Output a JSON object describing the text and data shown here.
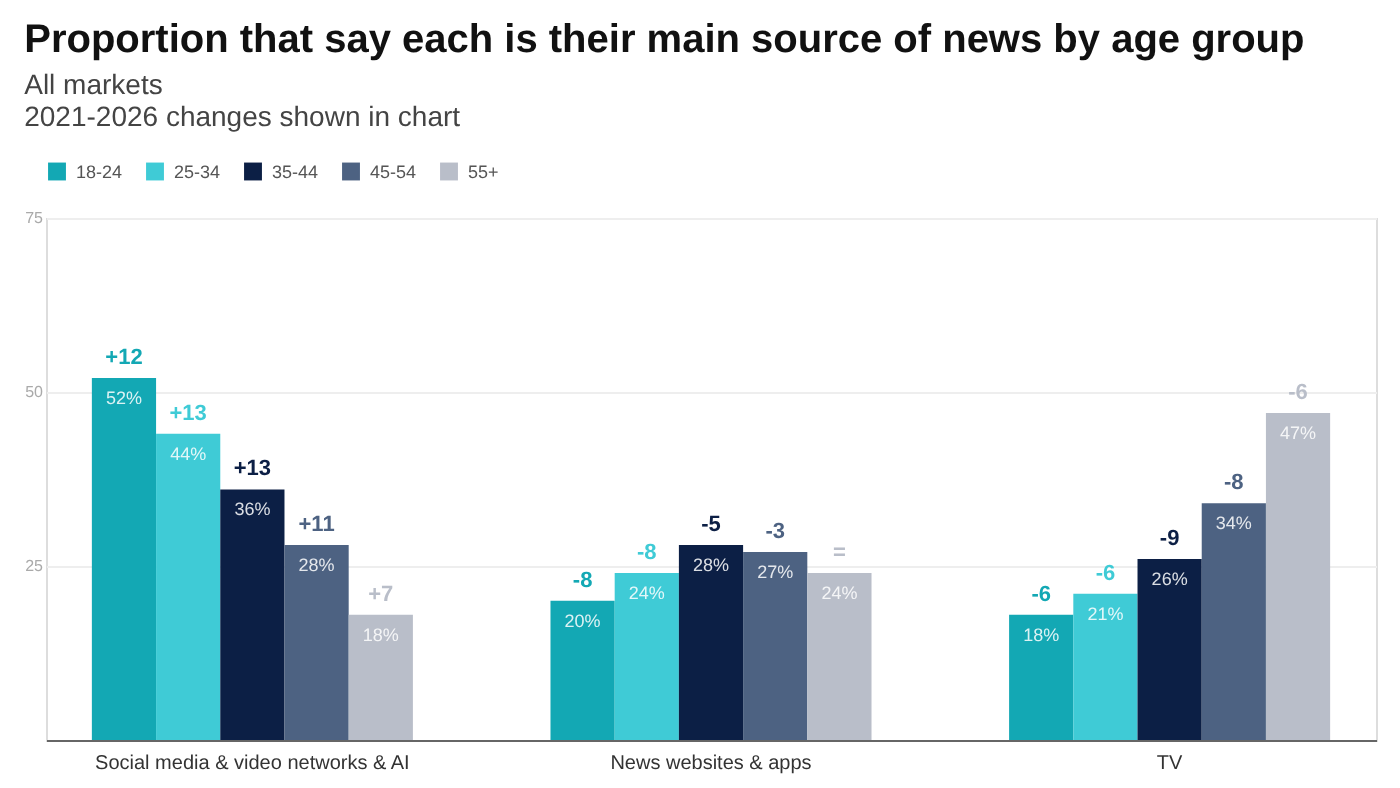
{
  "chart_data": {
    "type": "bar",
    "title": "Proportion that say each is their main source of news by age group",
    "subtitle": [
      "All markets",
      "2021-2026 changes shown in chart"
    ],
    "categories": [
      "Social media & video networks & AI",
      "News websites & apps",
      "TV"
    ],
    "series": [
      {
        "name": "18-24",
        "color": "#13a8b4",
        "values": [
          52,
          20,
          18
        ],
        "value_labels": [
          "52%",
          "20%",
          "18%"
        ]
      },
      {
        "name": "25-34",
        "color": "#3fcbd6",
        "values": [
          44,
          24,
          21
        ],
        "value_labels": [
          "44%",
          "24%",
          "21%"
        ]
      },
      {
        "name": "35-44",
        "color": "#0c1f45",
        "values": [
          36,
          28,
          26
        ],
        "value_labels": [
          "36%",
          "28%",
          "26%"
        ]
      },
      {
        "name": "45-54",
        "color": "#4d6282",
        "values": [
          28,
          27,
          34
        ],
        "value_labels": [
          "28%",
          "27%",
          "34%"
        ]
      },
      {
        "name": "55+",
        "color": "#b9bec9",
        "values": [
          18,
          24,
          47
        ],
        "value_labels": [
          "18%",
          "24%",
          "47%"
        ]
      }
    ],
    "annotations": [
      "+12",
      "+13",
      "+13",
      "+11",
      "+7",
      "-8",
      "-8",
      "-5",
      "-3",
      "=",
      "-6",
      "-6",
      "-9",
      "-8",
      "-6"
    ],
    "ylim": [
      0,
      75
    ],
    "yticks": [
      {
        "value": 0,
        "label": null
      },
      25,
      50,
      75
    ],
    "grid": "y",
    "legend": "top left"
  }
}
